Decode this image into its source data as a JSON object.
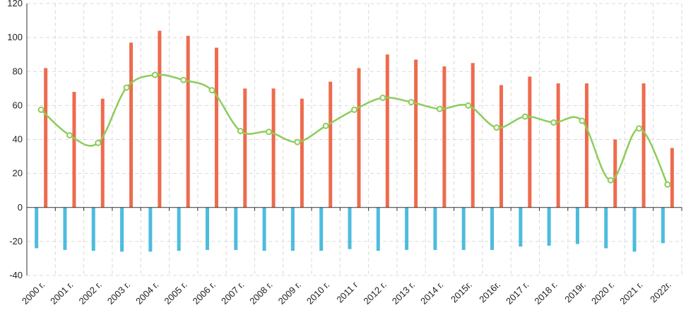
{
  "chart_data": {
    "type": "bar",
    "title": "",
    "xlabel": "",
    "ylabel": "",
    "ylim": [
      -40,
      120
    ],
    "yticks": [
      -40,
      -20,
      0,
      20,
      40,
      60,
      80,
      100,
      120
    ],
    "grid": true,
    "legend": "none",
    "categories": [
      "2000 г.",
      "2001 г.",
      "2002 г.",
      "2003 г.",
      "2004 г.",
      "2005 г.",
      "2006 г.",
      "2007 г.",
      "2008 г.",
      "2009 г.",
      "2010 г.",
      "2011 г",
      "2012 г.",
      "2013 г.",
      "2014 г.",
      "2015г.",
      "2016г.",
      "2017 г.",
      "2018 г.",
      "2019г.",
      "2020 г.",
      "2021 г.",
      "2022г."
    ],
    "series": [
      {
        "kind": "bar",
        "color": "#EE6B4D",
        "values": [
          82,
          68,
          64,
          97,
          104,
          101,
          94,
          70,
          70,
          64,
          74,
          82,
          90,
          87,
          83,
          85,
          72,
          77,
          73,
          73,
          40,
          73,
          35
        ]
      },
      {
        "kind": "bar",
        "color": "#4DBCDD",
        "values": [
          -24,
          -25,
          -25.5,
          -26,
          -26,
          -25.5,
          -25,
          -25,
          -25.5,
          -25.5,
          -25.5,
          -24.5,
          -25.5,
          -25,
          -25,
          -25,
          -25,
          -23,
          -22.5,
          -21.5,
          -24,
          -26,
          -21
        ]
      },
      {
        "kind": "line",
        "color": "#8DCC5A",
        "values": [
          57.5,
          42.5,
          38,
          70.5,
          78,
          75,
          69,
          45,
          44.5,
          38.5,
          48,
          57.5,
          64.5,
          62,
          58,
          60,
          47,
          53.5,
          50,
          51,
          16,
          46.5,
          13.5
        ]
      }
    ]
  }
}
